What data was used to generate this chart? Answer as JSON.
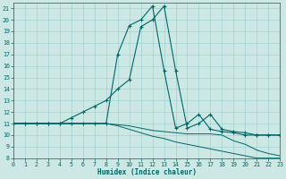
{
  "xlabel": "Humidex (Indice chaleur)",
  "bg_color": "#cce8e5",
  "line_color": "#006666",
  "grid_color": "#99cccc",
  "xlim": [
    0,
    23
  ],
  "ylim": [
    8,
    21.5
  ],
  "yticks": [
    8,
    9,
    10,
    11,
    12,
    13,
    14,
    15,
    16,
    17,
    18,
    19,
    20,
    21
  ],
  "xticks": [
    0,
    1,
    2,
    3,
    4,
    5,
    6,
    7,
    8,
    9,
    10,
    11,
    12,
    13,
    14,
    15,
    16,
    17,
    18,
    19,
    20,
    21,
    22,
    23
  ],
  "series": [
    {
      "x": [
        0,
        1,
        2,
        3,
        4,
        5,
        6,
        7,
        8,
        9,
        10,
        11,
        12,
        13,
        14,
        15,
        16,
        17,
        18,
        19,
        20,
        21,
        22,
        23
      ],
      "y": [
        11,
        11,
        11,
        11,
        11,
        11,
        11,
        11,
        11,
        10.9,
        10.8,
        10.6,
        10.4,
        10.3,
        10.2,
        10.1,
        10.1,
        10.1,
        10.0,
        9.5,
        9.2,
        8.7,
        8.4,
        8.2
      ],
      "marker": false
    },
    {
      "x": [
        0,
        1,
        2,
        3,
        4,
        5,
        6,
        7,
        8,
        9,
        10,
        11,
        12,
        13,
        14,
        15,
        16,
        17,
        18,
        19,
        20,
        21,
        22,
        23
      ],
      "y": [
        11,
        11,
        11,
        11,
        11,
        11,
        11,
        11,
        11,
        10.8,
        10.5,
        10.2,
        9.9,
        9.7,
        9.4,
        9.2,
        9.0,
        8.8,
        8.6,
        8.4,
        8.2,
        8.0,
        8.0,
        8.0
      ],
      "marker": false
    },
    {
      "x": [
        0,
        1,
        2,
        3,
        4,
        5,
        6,
        7,
        8,
        9,
        10,
        11,
        12,
        13,
        14,
        15,
        16,
        17,
        18,
        19,
        20,
        21,
        22,
        23
      ],
      "y": [
        11,
        11,
        11,
        11,
        11,
        11,
        11,
        11,
        11,
        17.0,
        19.5,
        20.0,
        21.2,
        15.6,
        10.6,
        11.0,
        11.8,
        10.5,
        10.3,
        10.2,
        10.0,
        10.0,
        10.0,
        10.0
      ],
      "marker": true
    },
    {
      "x": [
        0,
        1,
        2,
        3,
        4,
        5,
        6,
        7,
        8,
        9,
        10,
        11,
        12,
        13,
        14,
        15,
        16,
        17,
        18,
        19,
        20,
        21,
        22,
        23
      ],
      "y": [
        11,
        11,
        11,
        11,
        11,
        11.5,
        12.0,
        12.5,
        13.0,
        14.0,
        14.8,
        19.4,
        20.0,
        21.2,
        15.6,
        10.6,
        11.0,
        11.8,
        10.5,
        10.3,
        10.2,
        10.0,
        10.0,
        10.0
      ],
      "marker": true
    }
  ]
}
